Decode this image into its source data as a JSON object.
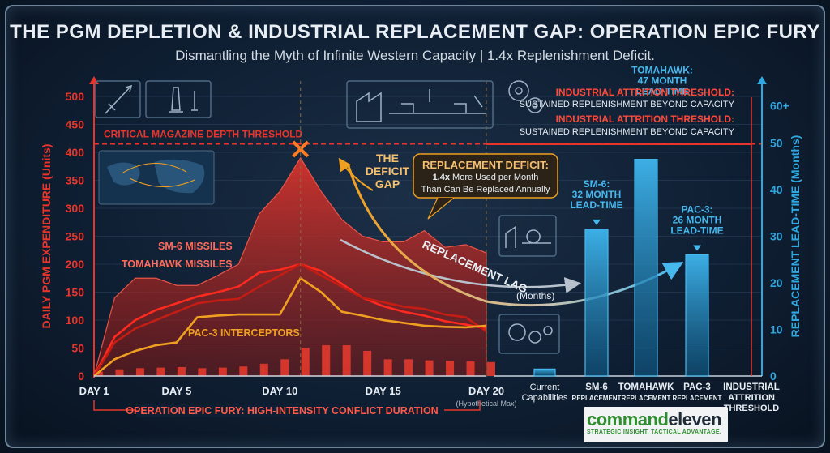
{
  "header": {
    "title": "THE PGM DEPLETION & INDUSTRIAL REPLACEMENT GAP: OPERATION EPIC FURY",
    "subtitle": "Dismantling the Myth of Infinite Western Capacity | 1.4x Replenishment Deficit."
  },
  "colors": {
    "red": "#e8352b",
    "orange": "#f0a020",
    "blue": "#2fa8e0",
    "text": "#e8eef4"
  },
  "chart_data": [
    {
      "type": "area",
      "ylabel": "DAILY PGM EXPENDITURE (Units)",
      "xlabel": "OPERATION EPIC FURY: HIGH-INTENSITY CONFLICT DURATION",
      "ylim": [
        0,
        520
      ],
      "yticks": [
        0,
        50,
        100,
        150,
        200,
        250,
        300,
        350,
        400,
        450,
        500
      ],
      "xticks": [
        {
          "day": 1,
          "label": "DAY 1"
        },
        {
          "day": 5,
          "label": "DAY 5"
        },
        {
          "day": 10,
          "label": "DAY 10"
        },
        {
          "day": 15,
          "label": "DAY 15"
        },
        {
          "day": 20,
          "label": "DAY 20"
        }
      ],
      "x_note": "(Hypothetical Max)",
      "days": [
        1,
        2,
        3,
        4,
        5,
        6,
        7,
        8,
        9,
        10,
        11,
        12,
        13,
        14,
        15,
        16,
        17,
        18,
        19,
        20
      ],
      "total_area": [
        0,
        140,
        175,
        175,
        162,
        162,
        180,
        200,
        290,
        330,
        390,
        330,
        280,
        250,
        240,
        240,
        260,
        230,
        235,
        220
      ],
      "series": [
        {
          "name": "SM-6 MISSILES",
          "values": [
            0,
            70,
            100,
            118,
            130,
            142,
            150,
            160,
            185,
            190,
            200,
            188,
            165,
            140,
            125,
            115,
            108,
            98,
            92,
            85
          ]
        },
        {
          "name": "TOMAHAWK MISSILES",
          "values": [
            0,
            60,
            85,
            100,
            115,
            130,
            135,
            138,
            160,
            180,
            200,
            180,
            160,
            140,
            132,
            124,
            120,
            110,
            105,
            80
          ]
        },
        {
          "name": "PAC-3 INTERCEPTORS",
          "values": [
            0,
            30,
            45,
            55,
            60,
            105,
            108,
            110,
            110,
            110,
            175,
            150,
            115,
            108,
            100,
            95,
            90,
            88,
            87,
            90
          ]
        }
      ],
      "daily_bars": [
        8,
        12,
        14,
        15,
        16,
        14,
        15,
        17,
        22,
        30,
        50,
        55,
        55,
        45,
        30,
        30,
        28,
        27,
        26,
        25
      ],
      "threshold": {
        "value": 415,
        "label": "CRITICAL MAGAZINE DEPTH THRESHOLD"
      },
      "annotations": {
        "deficit_gap": "THE DEFICIT GAP",
        "deficit_title": "REPLACEMENT DEFICIT:",
        "deficit_line1_bold": "1.4x",
        "deficit_line1": " More Used per Month",
        "deficit_line2": "Than Can Be Replaced Annually",
        "lag_label": "REPLACEMENT LAG",
        "lag_unit": "(Months)"
      }
    },
    {
      "type": "bar",
      "ylabel": "REPLACEMENT LEAD-TIME (Months)",
      "ylim": [
        0,
        62
      ],
      "yticks": [
        0,
        10,
        20,
        30,
        40,
        50
      ],
      "ytop_label": "60+",
      "categories": [
        {
          "label1": "Current",
          "label2": "Capabilities",
          "value": 1.5
        },
        {
          "label1": "SM-6",
          "label2": "REPLACEMENT",
          "value": 31.5,
          "callout": [
            "SM-6:",
            "32 MONTH",
            "LEAD-TIME"
          ]
        },
        {
          "label1": "TOMAHAWK",
          "label2": "REPLACEMENT",
          "value": 46.5,
          "callout": [
            "TOMAHAWK:",
            "47 MONTH",
            "LEAD-TIME"
          ]
        },
        {
          "label1": "PAC-3",
          "label2": "REPLACEMENT",
          "value": 26,
          "callout": [
            "PAC-3:",
            "26 MONTH",
            "LEAD-TIME"
          ]
        },
        {
          "label1": "INDUSTRIAL",
          "label2": "ATTRITION",
          "label3": "THRESHOLD",
          "value": null
        }
      ],
      "attrition": {
        "title": "INDUSTRIAL ATTRITION THRESHOLD:",
        "text": "SUSTAINED REPLENISHMENT BEYOND CAPACITY"
      }
    }
  ],
  "brand": {
    "part1": "command",
    "part2": "eleven",
    "tagline": "STRATEGIC INSIGHT. TACTICAL ADVANTAGE."
  }
}
